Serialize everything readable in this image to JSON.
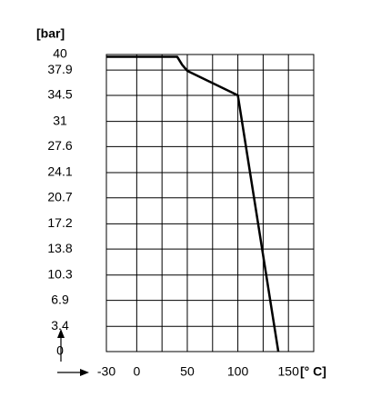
{
  "chart_data": {
    "type": "line",
    "y_label": "[bar]",
    "x_label": "[° C]",
    "x": [
      -30,
      40,
      45,
      50,
      100,
      140
    ],
    "series": [
      {
        "color": "#000000",
        "values": [
          39.7,
          39.7,
          38.6,
          37.8,
          34.5,
          0
        ]
      }
    ],
    "xlim": [
      -30,
      175
    ],
    "xticks": [
      -30,
      0,
      50,
      100,
      150
    ],
    "xgrid": [
      0,
      25,
      50,
      75,
      100,
      125,
      150,
      175
    ],
    "ylim": [
      0,
      40
    ],
    "yticks": [
      0,
      3.4,
      6.9,
      10.3,
      13.8,
      17.2,
      20.7,
      24.1,
      27.6,
      31,
      34.5,
      37.9,
      40
    ],
    "grid": true
  }
}
